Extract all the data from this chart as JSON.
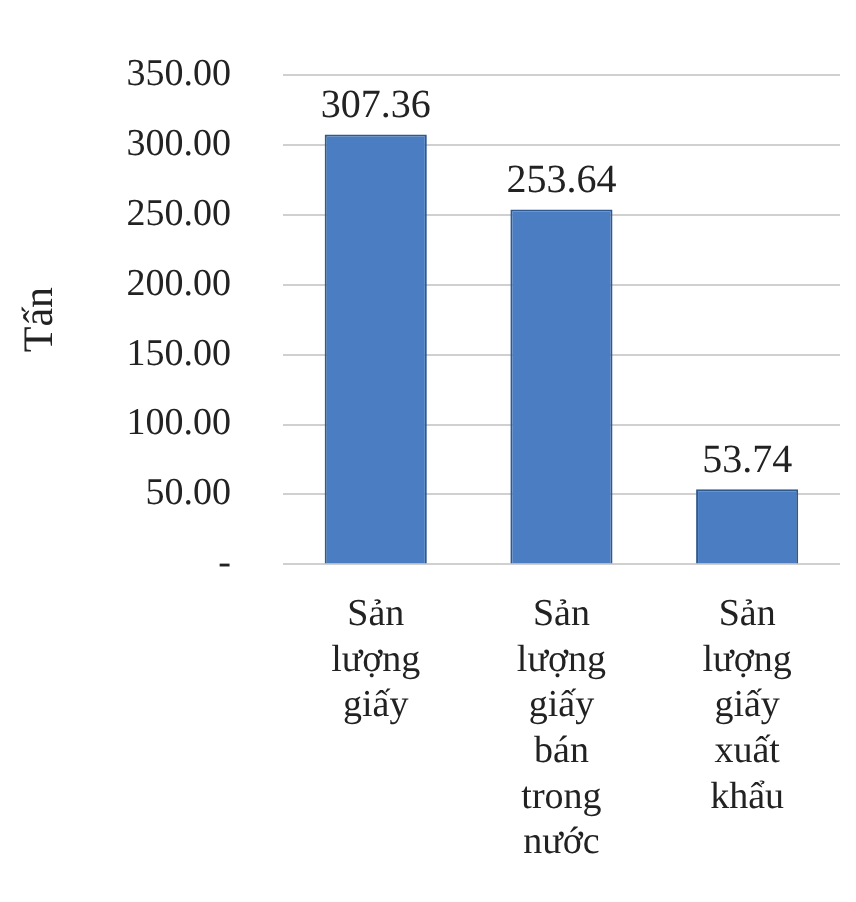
{
  "chart_data": {
    "type": "bar",
    "ylabel": "Tấn",
    "categories": [
      "Sản lượng giấy",
      "Sản lượng giấy bán trong nước",
      "Sản lượng giấy xuất khẩu"
    ],
    "values": [
      307.36,
      253.64,
      53.74
    ],
    "color": "#4a7dc2",
    "ylim": [
      0,
      350
    ],
    "yticks": [
      {
        "value": 0,
        "label": "-"
      },
      {
        "value": 50,
        "label": "50.00"
      },
      {
        "value": 100,
        "label": "100.00"
      },
      {
        "value": 150,
        "label": "150.00"
      },
      {
        "value": 200,
        "label": "200.00"
      },
      {
        "value": 250,
        "label": "250.00"
      },
      {
        "value": 300,
        "label": "300.00"
      },
      {
        "value": 350,
        "label": "350.00"
      }
    ],
    "grid": "y",
    "data_labels": true
  }
}
